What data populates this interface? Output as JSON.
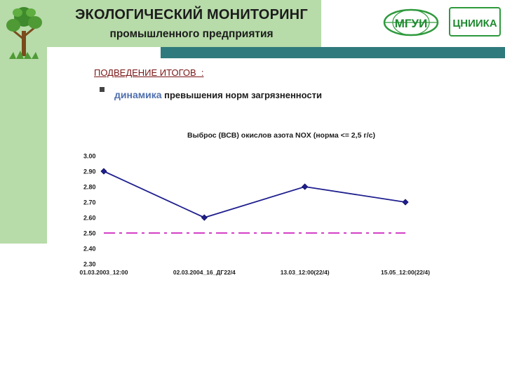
{
  "header": {
    "title": "ЭКОЛОГИЧЕСКИЙ МОНИТОРИНГ",
    "subtitle": "промышленного предприятия",
    "logo_left_text": "МГУИ",
    "logo_right_text": "ЦНИИКА"
  },
  "section": {
    "heading": "ПОДВЕДЕНИЕ ИТОГОВ  :",
    "bullet_highlight": "динамика",
    "bullet_rest": " превышения норм загрязненности"
  },
  "colors": {
    "header_green": "#b7dba9",
    "teal_bar": "#2f7a7c",
    "series": "#1f1f8f",
    "norm_line": "#d43fc7"
  },
  "chart_data": {
    "type": "line",
    "title": "Выброс (ВСВ) окислов азота NOX (норма <= 2,5 г/с)",
    "categories": [
      "01.03.2003_12:00",
      "02.03.2004_16_ДГ22/4",
      "13.03_12:00(22/4)",
      "15.05_12:00(22/4)"
    ],
    "series": [
      {
        "values": [
          2.9,
          2.6,
          2.8,
          2.7
        ]
      }
    ],
    "norm": 2.5,
    "ylim": [
      2.3,
      3.0
    ],
    "yticks": [
      "3.00",
      "2.90",
      "2.80",
      "2.70",
      "2.60",
      "2.50",
      "2.40",
      "2.30"
    ],
    "grid": false,
    "legend": false
  }
}
